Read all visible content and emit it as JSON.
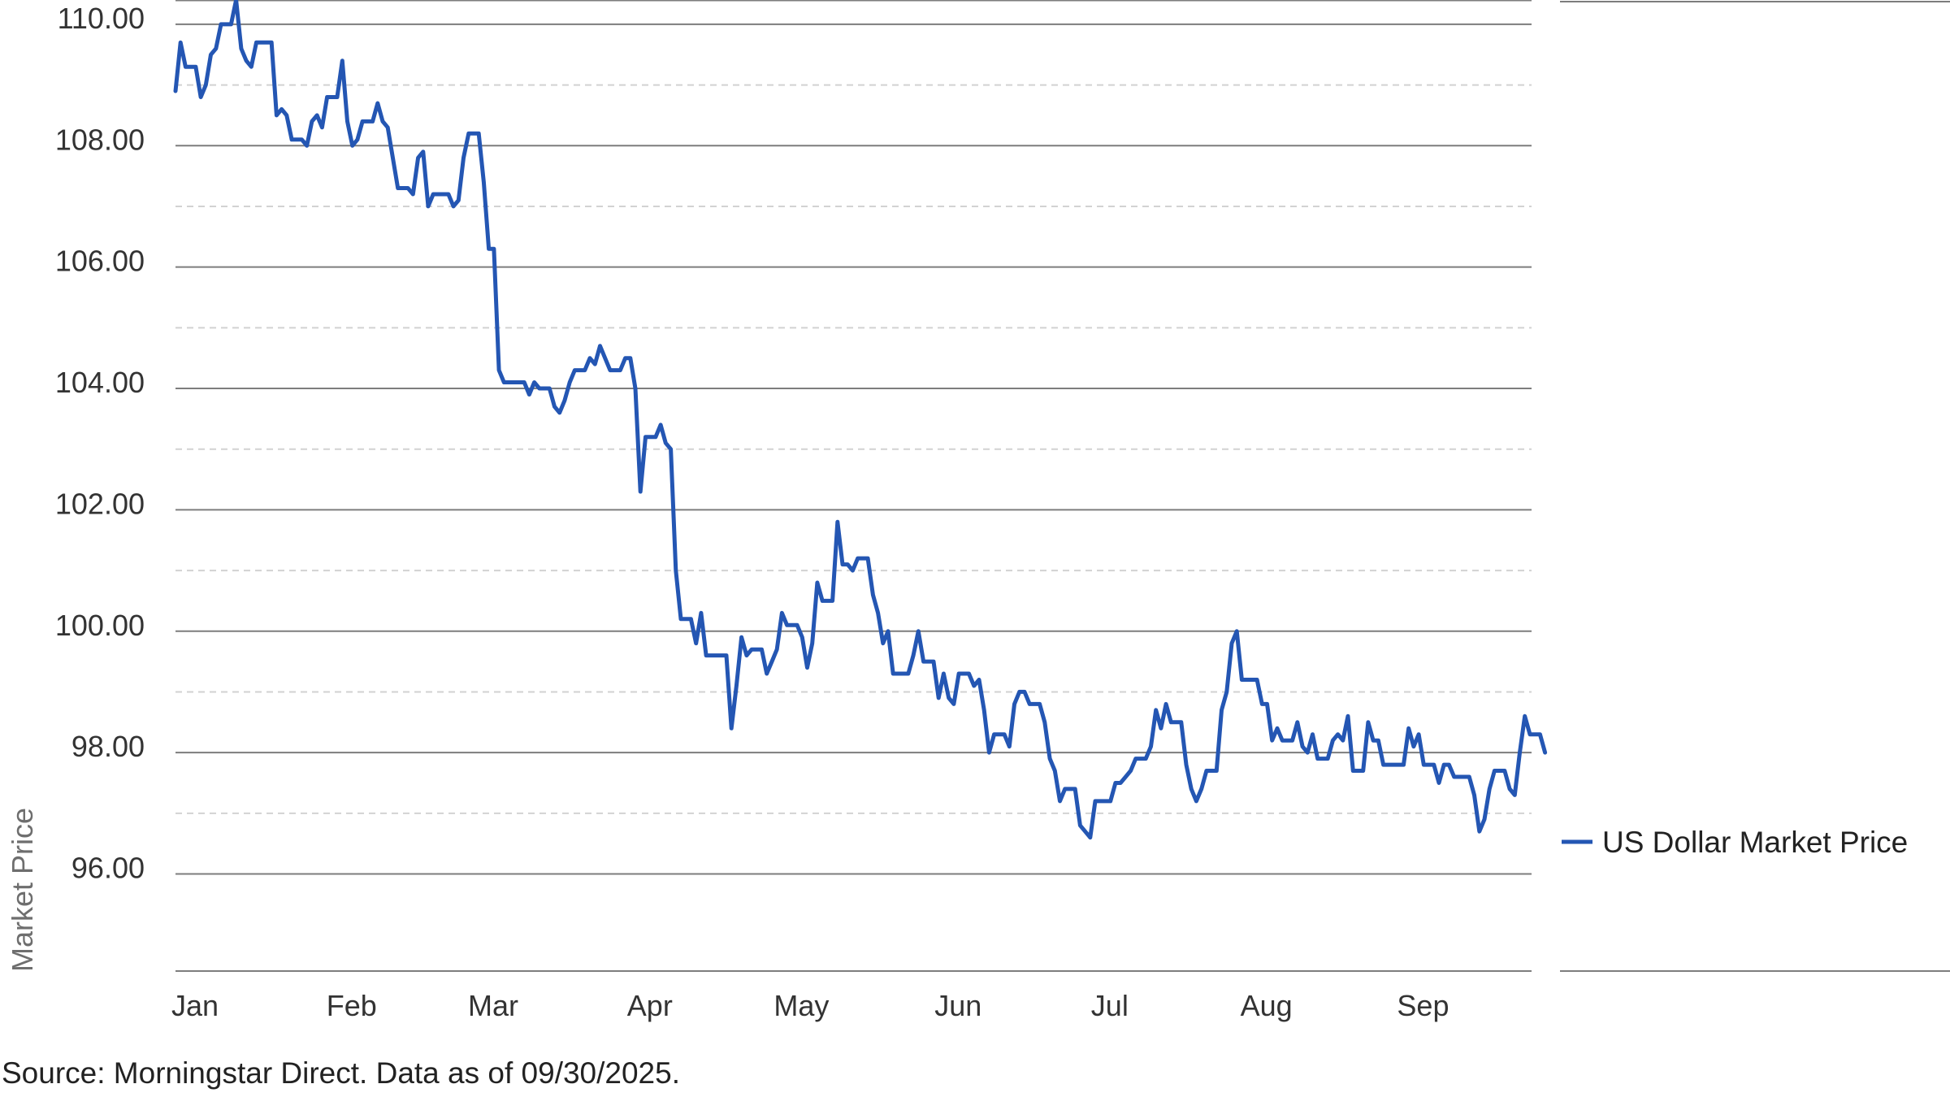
{
  "chart_data": {
    "type": "line",
    "ylabel": "Market Price",
    "xlabel": "",
    "ylim": [
      94.4,
      110.4
    ],
    "yticks": [
      "110.00",
      "108.00",
      "106.00",
      "104.00",
      "102.00",
      "100.00",
      "98.00",
      "96.00"
    ],
    "ytick_values": [
      110,
      108,
      106,
      104,
      102,
      100,
      98,
      96
    ],
    "grid": "horizontal dashed",
    "months": [
      "Jan",
      "Feb",
      "Mar",
      "Apr",
      "May",
      "Jun",
      "Jul",
      "Aug",
      "Sep"
    ],
    "month_day_index": [
      0,
      31,
      59,
      90,
      120,
      151,
      181,
      212,
      243
    ],
    "legend_placement": "right",
    "series": [
      {
        "name": "US Dollar Market Price",
        "color": "#2456b3",
        "points": [
          [
            0,
            108.9
          ],
          [
            1,
            109.7
          ],
          [
            2,
            109.3
          ],
          [
            4,
            109.3
          ],
          [
            5,
            108.8
          ],
          [
            6,
            109.0
          ],
          [
            7,
            109.5
          ],
          [
            8,
            109.6
          ],
          [
            9,
            110.0
          ],
          [
            11,
            110.0
          ],
          [
            12,
            110.4
          ],
          [
            13,
            109.6
          ],
          [
            14,
            109.4
          ],
          [
            15,
            109.3
          ],
          [
            16,
            109.7
          ],
          [
            19,
            109.7
          ],
          [
            20,
            108.5
          ],
          [
            21,
            108.6
          ],
          [
            22,
            108.5
          ],
          [
            23,
            108.1
          ],
          [
            25,
            108.1
          ],
          [
            26,
            108.0
          ],
          [
            27,
            108.4
          ],
          [
            28,
            108.5
          ],
          [
            29,
            108.3
          ],
          [
            30,
            108.8
          ],
          [
            32,
            108.8
          ],
          [
            33,
            109.4
          ],
          [
            34,
            108.4
          ],
          [
            35,
            108.0
          ],
          [
            36,
            108.1
          ],
          [
            37,
            108.4
          ],
          [
            39,
            108.4
          ],
          [
            40,
            108.7
          ],
          [
            41,
            108.4
          ],
          [
            42,
            108.3
          ],
          [
            44,
            107.3
          ],
          [
            46,
            107.3
          ],
          [
            47,
            107.2
          ],
          [
            48,
            107.8
          ],
          [
            49,
            107.9
          ],
          [
            50,
            107.0
          ],
          [
            51,
            107.2
          ],
          [
            54,
            107.2
          ],
          [
            55,
            107.0
          ],
          [
            56,
            107.1
          ],
          [
            57,
            107.8
          ],
          [
            58,
            108.2
          ],
          [
            60,
            108.2
          ],
          [
            61,
            107.4
          ],
          [
            62,
            106.3
          ],
          [
            63,
            106.3
          ],
          [
            64,
            104.3
          ],
          [
            65,
            104.1
          ],
          [
            69,
            104.1
          ],
          [
            70,
            103.9
          ],
          [
            71,
            104.1
          ],
          [
            72,
            104.0
          ],
          [
            74,
            104.0
          ],
          [
            75,
            103.7
          ],
          [
            76,
            103.6
          ],
          [
            77,
            103.8
          ],
          [
            78,
            104.1
          ],
          [
            79,
            104.3
          ],
          [
            81,
            104.3
          ],
          [
            82,
            104.5
          ],
          [
            83,
            104.4
          ],
          [
            84,
            104.7
          ],
          [
            85,
            104.5
          ],
          [
            86,
            104.3
          ],
          [
            88,
            104.3
          ],
          [
            89,
            104.5
          ],
          [
            90,
            104.5
          ],
          [
            91,
            104.0
          ],
          [
            92,
            102.3
          ],
          [
            93,
            103.2
          ],
          [
            95,
            103.2
          ],
          [
            96,
            103.4
          ],
          [
            97,
            103.1
          ],
          [
            98,
            103.0
          ],
          [
            99,
            101.0
          ],
          [
            100,
            100.2
          ],
          [
            102,
            100.2
          ],
          [
            103,
            99.8
          ],
          [
            104,
            100.3
          ],
          [
            105,
            99.6
          ],
          [
            109,
            99.6
          ],
          [
            110,
            98.4
          ],
          [
            111,
            99.1
          ],
          [
            112,
            99.9
          ],
          [
            113,
            99.6
          ],
          [
            114,
            99.7
          ],
          [
            116,
            99.7
          ],
          [
            117,
            99.3
          ],
          [
            118,
            99.5
          ],
          [
            119,
            99.7
          ],
          [
            120,
            100.3
          ],
          [
            121,
            100.1
          ],
          [
            123,
            100.1
          ],
          [
            124,
            99.9
          ],
          [
            125,
            99.4
          ],
          [
            126,
            99.8
          ],
          [
            127,
            100.8
          ],
          [
            128,
            100.5
          ],
          [
            130,
            100.5
          ],
          [
            131,
            101.8
          ],
          [
            132,
            101.1
          ],
          [
            133,
            101.1
          ],
          [
            134,
            101.0
          ],
          [
            135,
            101.2
          ],
          [
            137,
            101.2
          ],
          [
            138,
            100.6
          ],
          [
            139,
            100.3
          ],
          [
            140,
            99.8
          ],
          [
            141,
            100.0
          ],
          [
            142,
            99.3
          ],
          [
            145,
            99.3
          ],
          [
            146,
            99.6
          ],
          [
            147,
            100.0
          ],
          [
            148,
            99.5
          ],
          [
            150,
            99.5
          ],
          [
            151,
            98.9
          ],
          [
            152,
            99.3
          ],
          [
            153,
            98.9
          ],
          [
            154,
            98.8
          ],
          [
            155,
            99.3
          ],
          [
            157,
            99.3
          ],
          [
            158,
            99.1
          ],
          [
            159,
            99.2
          ],
          [
            160,
            98.7
          ],
          [
            161,
            98.0
          ],
          [
            162,
            98.3
          ],
          [
            164,
            98.3
          ],
          [
            165,
            98.1
          ],
          [
            166,
            98.8
          ],
          [
            167,
            99.0
          ],
          [
            168,
            99.0
          ],
          [
            169,
            98.8
          ],
          [
            171,
            98.8
          ],
          [
            172,
            98.5
          ],
          [
            173,
            97.9
          ],
          [
            174,
            97.7
          ],
          [
            175,
            97.2
          ],
          [
            176,
            97.4
          ],
          [
            178,
            97.4
          ],
          [
            179,
            96.8
          ],
          [
            180,
            96.7
          ],
          [
            181,
            96.6
          ],
          [
            182,
            97.2
          ],
          [
            185,
            97.2
          ],
          [
            186,
            97.5
          ],
          [
            187,
            97.5
          ],
          [
            188,
            97.6
          ],
          [
            189,
            97.7
          ],
          [
            190,
            97.9
          ],
          [
            192,
            97.9
          ],
          [
            193,
            98.1
          ],
          [
            194,
            98.7
          ],
          [
            195,
            98.4
          ],
          [
            196,
            98.8
          ],
          [
            197,
            98.5
          ],
          [
            199,
            98.5
          ],
          [
            200,
            97.8
          ],
          [
            201,
            97.4
          ],
          [
            202,
            97.2
          ],
          [
            203,
            97.4
          ],
          [
            204,
            97.7
          ],
          [
            206,
            97.7
          ],
          [
            207,
            98.7
          ],
          [
            208,
            99.0
          ],
          [
            209,
            99.8
          ],
          [
            210,
            100.0
          ],
          [
            211,
            99.2
          ],
          [
            214,
            99.2
          ],
          [
            215,
            98.8
          ],
          [
            216,
            98.8
          ],
          [
            217,
            98.2
          ],
          [
            218,
            98.4
          ],
          [
            219,
            98.2
          ],
          [
            221,
            98.2
          ],
          [
            222,
            98.5
          ],
          [
            223,
            98.1
          ],
          [
            224,
            98.0
          ],
          [
            225,
            98.3
          ],
          [
            226,
            97.9
          ],
          [
            228,
            97.9
          ],
          [
            229,
            98.2
          ],
          [
            230,
            98.3
          ],
          [
            231,
            98.2
          ],
          [
            232,
            98.6
          ],
          [
            233,
            97.7
          ],
          [
            235,
            97.7
          ],
          [
            236,
            98.5
          ],
          [
            237,
            98.2
          ],
          [
            238,
            98.2
          ],
          [
            239,
            97.8
          ],
          [
            243,
            97.8
          ],
          [
            244,
            98.4
          ],
          [
            245,
            98.1
          ],
          [
            246,
            98.3
          ],
          [
            247,
            97.8
          ],
          [
            249,
            97.8
          ],
          [
            250,
            97.5
          ],
          [
            251,
            97.8
          ],
          [
            252,
            97.8
          ],
          [
            253,
            97.6
          ],
          [
            256,
            97.6
          ],
          [
            257,
            97.3
          ],
          [
            258,
            96.7
          ],
          [
            259,
            96.9
          ],
          [
            260,
            97.4
          ],
          [
            261,
            97.7
          ],
          [
            263,
            97.7
          ],
          [
            264,
            97.4
          ],
          [
            265,
            97.3
          ],
          [
            266,
            98.0
          ],
          [
            267,
            98.6
          ],
          [
            268,
            98.3
          ],
          [
            270,
            98.3
          ],
          [
            271,
            98.0
          ]
        ]
      }
    ]
  },
  "footer": {
    "source": "Source: Morningstar Direct. Data as of 09/30/2025."
  }
}
